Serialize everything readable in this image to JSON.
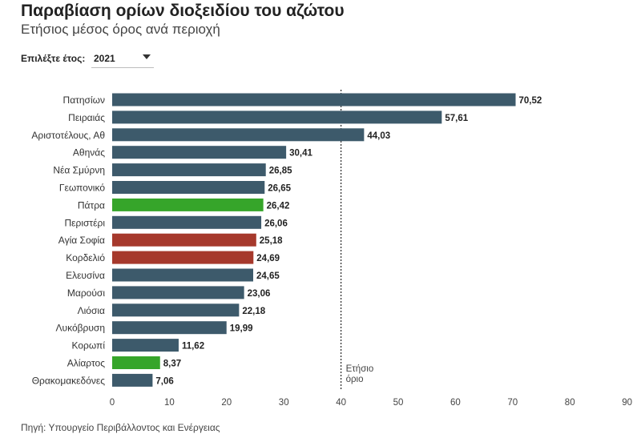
{
  "header": {
    "title": "Παραβίαση ορίων διοξειδίου του αζώτου",
    "subtitle": "Ετήσιος μέσος όρος ανά περιοχή"
  },
  "controls": {
    "year_label": "Επιλέξτε έτος:",
    "year_value": "2021",
    "dropdown_icon": "chevron-down-icon"
  },
  "footer": {
    "source": "Πηγή: Υπουργείο Περιβάλλοντος και Ενέργειας"
  },
  "colors": {
    "default": "#3d5a6b",
    "green": "#36a52a",
    "red": "#a6392c"
  },
  "chart_data": {
    "type": "bar",
    "orientation": "horizontal",
    "categories": [
      "Πατησίων",
      "Πειραιάς",
      "Αριστοτέλους, Αθ",
      "Αθηνάς",
      "Νέα Σμύρνη",
      "Γεωπονικό",
      "Πάτρα",
      "Περιστέρι",
      "Αγία Σοφία",
      "Κορδελιό",
      "Ελευσίνα",
      "Μαρούσι",
      "Λιόσια",
      "Λυκόβρυση",
      "Κορωπί",
      "Αλίαρτος",
      "Θρακομακεδόνες"
    ],
    "values": [
      70.52,
      57.61,
      44.03,
      30.41,
      26.85,
      26.65,
      26.42,
      26.06,
      25.18,
      24.69,
      24.65,
      23.06,
      22.18,
      19.99,
      11.62,
      8.37,
      7.06
    ],
    "value_labels": [
      "70,52",
      "57,61",
      "44,03",
      "30,41",
      "26,85",
      "26,65",
      "26,42",
      "26,06",
      "25,18",
      "24,69",
      "24,65",
      "23,06",
      "22,18",
      "19,99",
      "11,62",
      "8,37",
      "7,06"
    ],
    "bar_colors": [
      "default",
      "default",
      "default",
      "default",
      "default",
      "default",
      "green",
      "default",
      "red",
      "red",
      "default",
      "default",
      "default",
      "default",
      "default",
      "green",
      "default"
    ],
    "xlim": [
      0,
      90
    ],
    "xticks": [
      0,
      10,
      20,
      30,
      40,
      50,
      60,
      70,
      80,
      90
    ],
    "reference_line": {
      "value": 40,
      "label_lines": [
        "Ετήσιο",
        "όριο"
      ]
    },
    "grid": false
  }
}
